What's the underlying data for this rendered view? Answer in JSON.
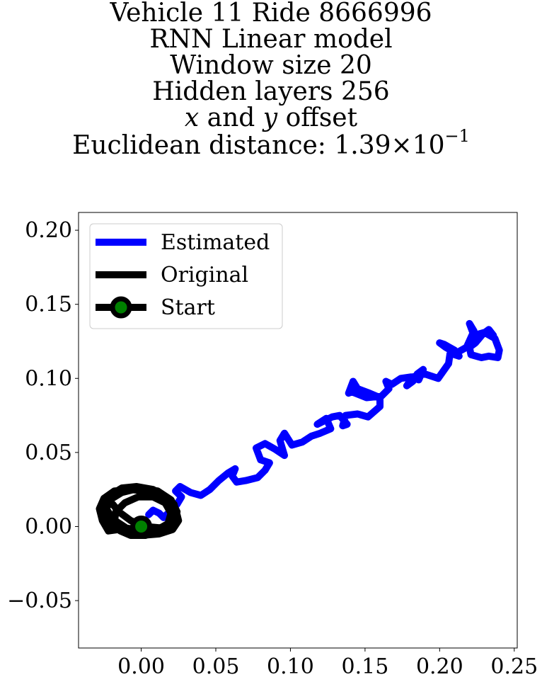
{
  "chart_data": {
    "type": "line",
    "title_lines": [
      "Vehicle 11 Ride 8666996",
      "RNN Linear model",
      "Window size 20",
      "Hidden layers 256"
    ],
    "offset_line": {
      "x_var": "x",
      "middle": " and ",
      "y_var": "y",
      "suffix": " offset"
    },
    "distance_line": {
      "prefix": "Euclidean distance: ",
      "mantissa": "1.39",
      "times": "×",
      "base": "10",
      "exponent": "−1"
    },
    "xlim": [
      -0.042,
      0.252
    ],
    "ylim": [
      -0.082,
      0.212
    ],
    "x_ticks": [
      0.0,
      0.05,
      0.1,
      0.15,
      0.2,
      0.25
    ],
    "x_tick_labels": [
      "0.00",
      "0.05",
      "0.10",
      "0.15",
      "0.20",
      "0.25"
    ],
    "y_ticks": [
      -0.05,
      0.0,
      0.05,
      0.1,
      0.15,
      0.2
    ],
    "y_tick_labels": [
      "−0.05",
      "0.00",
      "0.05",
      "0.10",
      "0.15",
      "0.20"
    ],
    "grid": false,
    "legend_position": "upper-left",
    "series": [
      {
        "name": "Estimated",
        "color": "#0000ff",
        "x": [
          0.005,
          0.008,
          0.012,
          0.015,
          0.02,
          0.024,
          0.027,
          0.023,
          0.026,
          0.033,
          0.04,
          0.046,
          0.052,
          0.058,
          0.063,
          0.061,
          0.064,
          0.07,
          0.078,
          0.083,
          0.086,
          0.08,
          0.077,
          0.083,
          0.09,
          0.096,
          0.093,
          0.096,
          0.101,
          0.108,
          0.114,
          0.12,
          0.127,
          0.124,
          0.118,
          0.122,
          0.128,
          0.133,
          0.138,
          0.135,
          0.137,
          0.145,
          0.152,
          0.16,
          0.16,
          0.153,
          0.145,
          0.142,
          0.139,
          0.141,
          0.151,
          0.161,
          0.166,
          0.164,
          0.168,
          0.174,
          0.181,
          0.186,
          0.189,
          0.185,
          0.182,
          0.178,
          0.182,
          0.19,
          0.199,
          0.206,
          0.207,
          0.213,
          0.21,
          0.203,
          0.2,
          0.204,
          0.211,
          0.218,
          0.223,
          0.22,
          0.223,
          0.23,
          0.237,
          0.24,
          0.239,
          0.233,
          0.228,
          0.221,
          0.22,
          0.224,
          0.229,
          0.233,
          0.236
        ],
        "y": [
          0.008,
          0.011,
          0.009,
          0.006,
          0.011,
          0.015,
          0.02,
          0.024,
          0.027,
          0.023,
          0.021,
          0.025,
          0.031,
          0.036,
          0.039,
          0.034,
          0.03,
          0.031,
          0.033,
          0.038,
          0.043,
          0.045,
          0.053,
          0.056,
          0.052,
          0.048,
          0.058,
          0.063,
          0.055,
          0.057,
          0.061,
          0.063,
          0.066,
          0.073,
          0.069,
          0.071,
          0.074,
          0.075,
          0.069,
          0.068,
          0.075,
          0.076,
          0.074,
          0.081,
          0.087,
          0.09,
          0.093,
          0.098,
          0.09,
          0.091,
          0.087,
          0.088,
          0.093,
          0.098,
          0.096,
          0.1,
          0.101,
          0.099,
          0.106,
          0.103,
          0.098,
          0.095,
          0.101,
          0.103,
          0.1,
          0.11,
          0.117,
          0.115,
          0.119,
          0.123,
          0.124,
          0.121,
          0.117,
          0.121,
          0.132,
          0.137,
          0.129,
          0.131,
          0.127,
          0.119,
          0.114,
          0.115,
          0.114,
          0.116,
          0.121,
          0.124,
          0.13,
          0.133,
          0.129
        ]
      },
      {
        "name": "Original",
        "color": "#000000",
        "x": [
          -0.015,
          -0.022,
          -0.026,
          -0.028,
          -0.025,
          -0.018,
          -0.008,
          0.004,
          0.015,
          0.022,
          0.024,
          0.021,
          0.013,
          0.003,
          -0.007,
          -0.014,
          -0.018,
          -0.017,
          -0.011,
          -0.002,
          0.008,
          0.016,
          0.02,
          0.018,
          0.011,
          0.001,
          -0.01,
          -0.019,
          -0.024,
          -0.021,
          -0.013,
          -0.003,
          0.008,
          0.017,
          0.023,
          0.025,
          0.021,
          0.012,
          0.0,
          -0.011,
          -0.02,
          -0.024,
          -0.021,
          -0.013,
          -0.001,
          0.011,
          0.02,
          0.024,
          0.022,
          0.014,
          0.003,
          -0.007,
          -0.015,
          -0.019
        ],
        "y": [
          -0.002,
          -0.003,
          0.004,
          0.012,
          0.019,
          0.024,
          0.025,
          0.024,
          0.021,
          0.015,
          0.007,
          0.0,
          -0.004,
          -0.006,
          -0.006,
          -0.003,
          0.003,
          0.01,
          0.016,
          0.02,
          0.02,
          0.016,
          0.009,
          0.002,
          -0.002,
          -0.003,
          -0.001,
          0.005,
          0.013,
          0.021,
          0.026,
          0.027,
          0.025,
          0.02,
          0.012,
          0.004,
          -0.002,
          -0.005,
          -0.006,
          -0.004,
          0.002,
          0.01,
          0.018,
          0.023,
          0.026,
          0.024,
          0.018,
          0.01,
          0.003,
          -0.001,
          0.0,
          0.004,
          0.01,
          0.015
        ]
      }
    ],
    "start_marker": {
      "name": "Start",
      "x": 0.0,
      "y": 0.0,
      "edge_color": "#000000",
      "face_color": "#008000"
    }
  }
}
